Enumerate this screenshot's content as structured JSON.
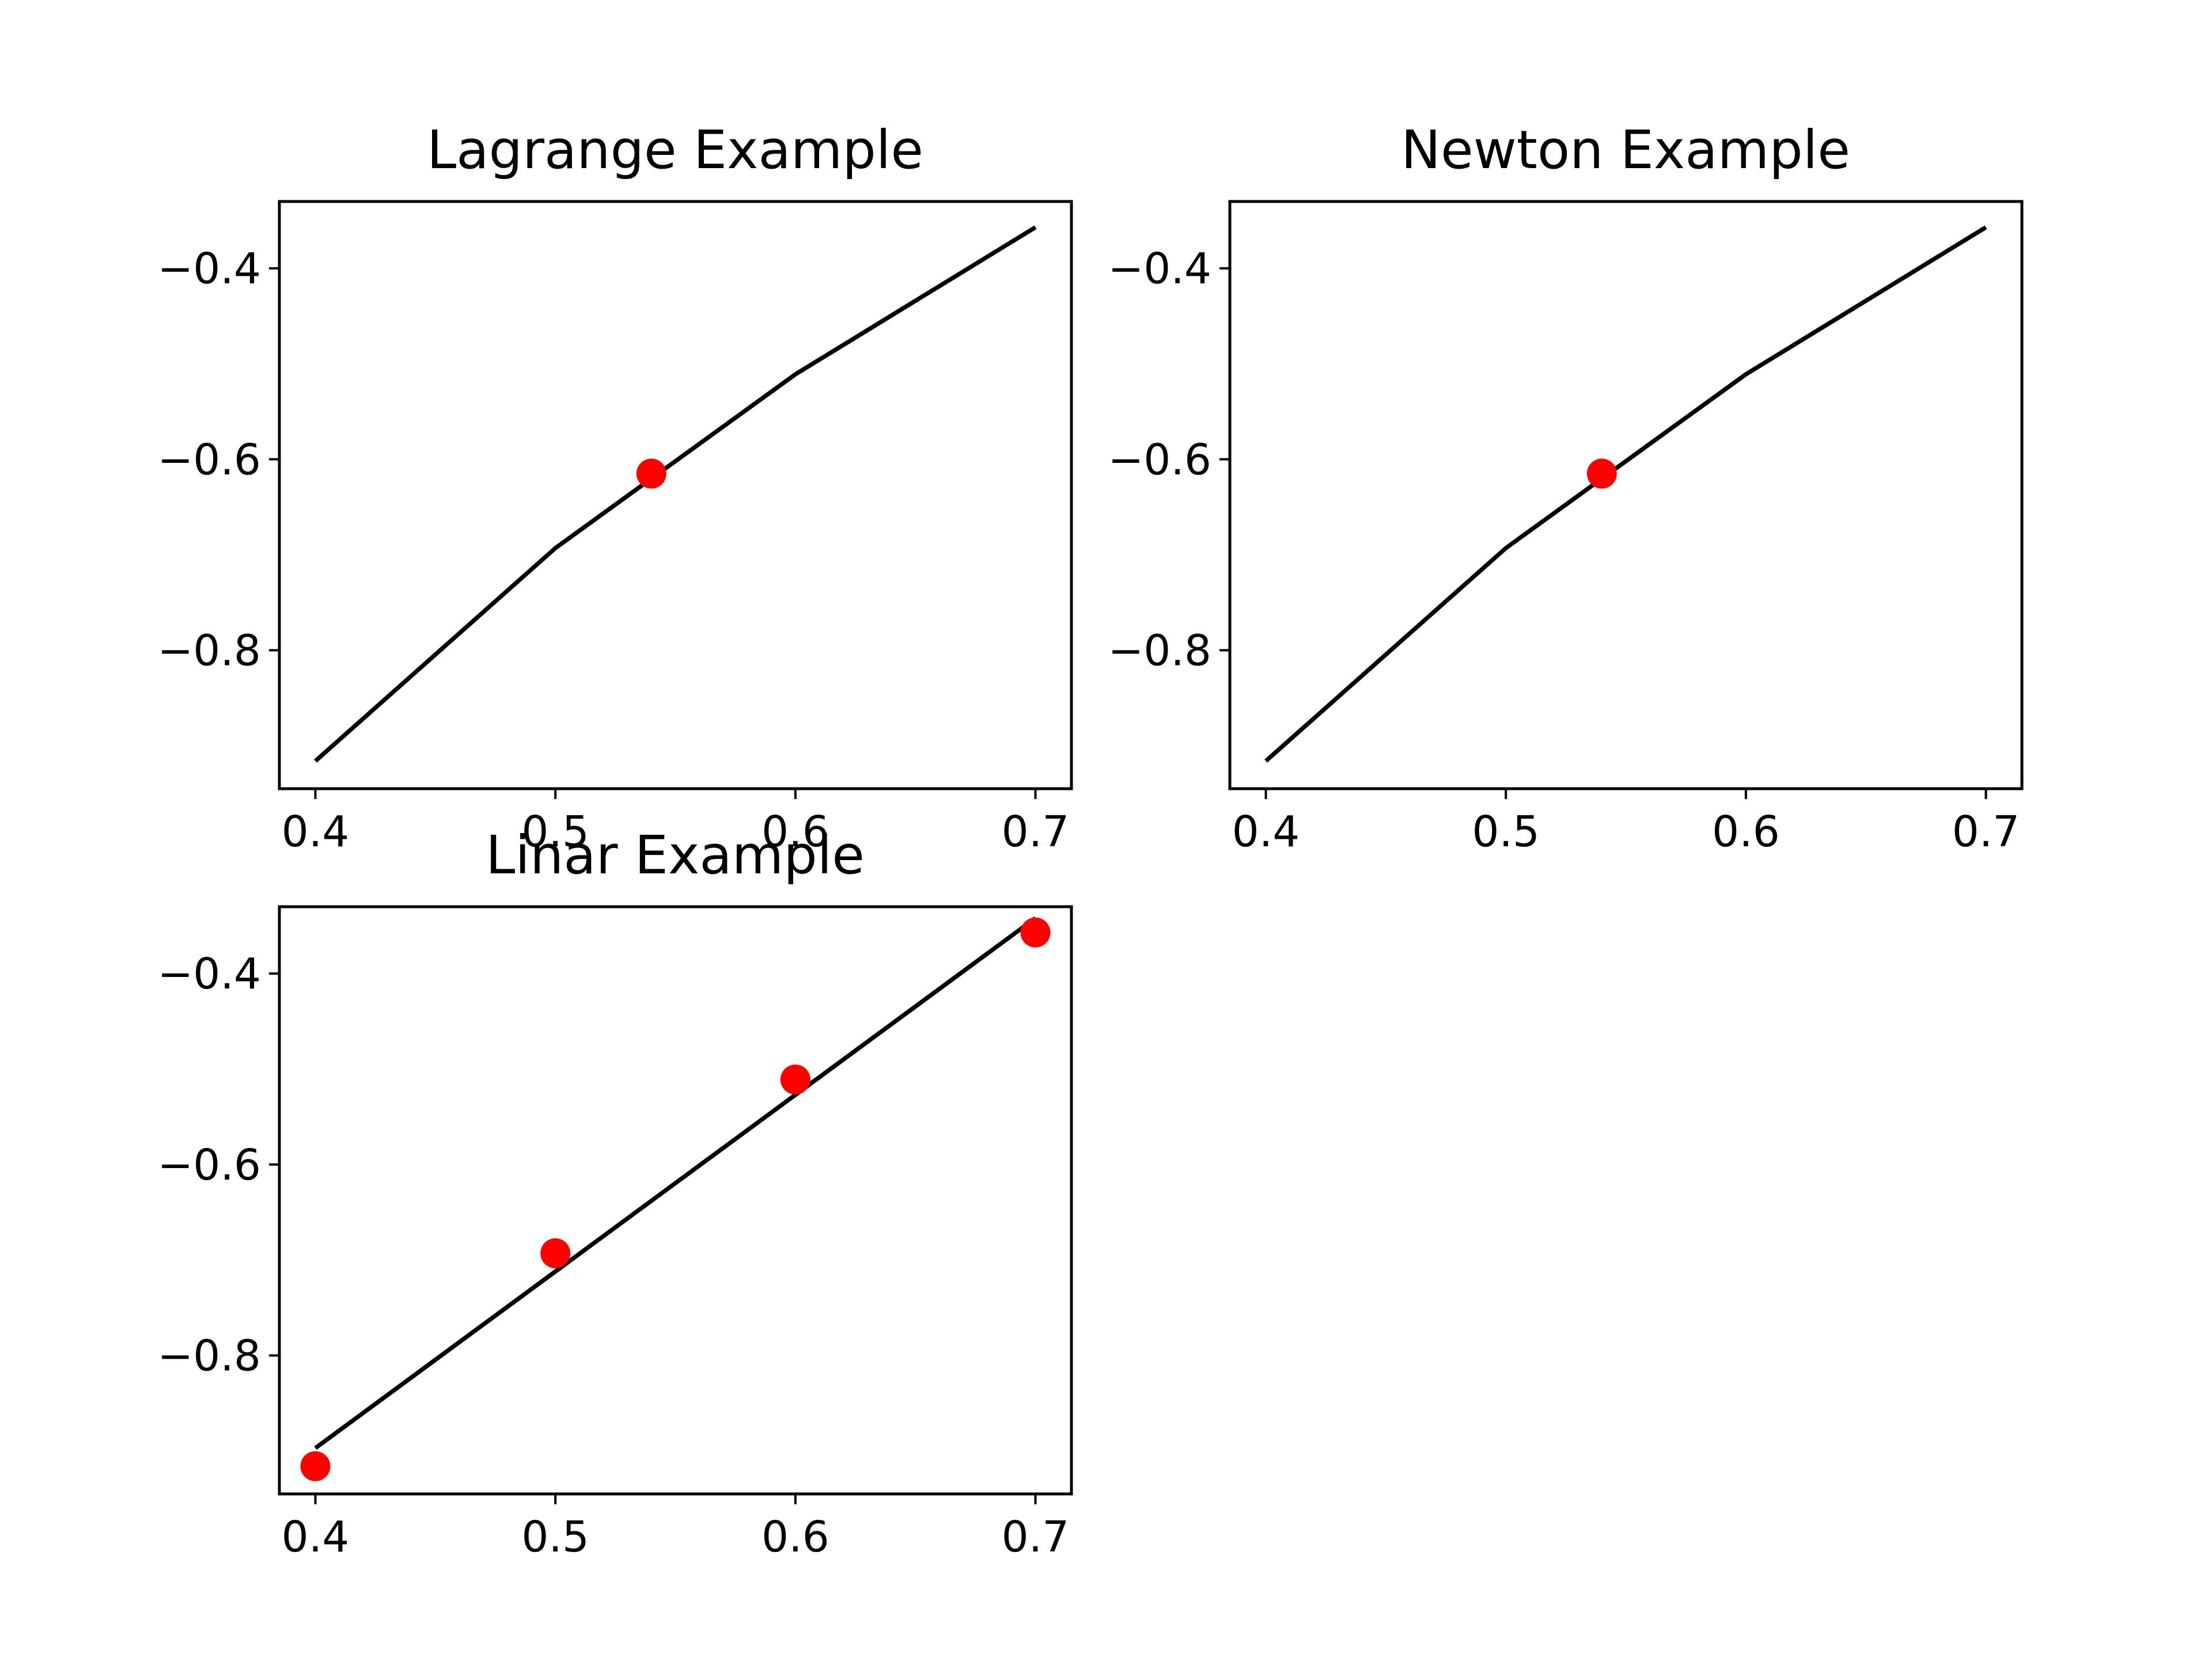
{
  "chart_data": [
    {
      "type": "line",
      "title": "Lagrange Example",
      "xlabel": "",
      "ylabel": "",
      "xlim": [
        0.385,
        0.715
      ],
      "ylim": [
        -0.945,
        -0.33
      ],
      "xticks": [
        0.4,
        0.5,
        0.6,
        0.7
      ],
      "xtick_labels": [
        "0.4",
        "0.5",
        "0.6",
        "0.7"
      ],
      "yticks": [
        -0.4,
        -0.6,
        -0.8
      ],
      "ytick_labels": [
        "−0.4",
        "−0.6",
        "−0.8"
      ],
      "grid": false,
      "line": {
        "color": "#000000",
        "x": [
          0.4,
          0.5,
          0.6,
          0.7
        ],
        "y": [
          -0.916,
          -0.693,
          -0.511,
          -0.357
        ]
      },
      "points": {
        "color": "#ff0000",
        "x": [
          0.54
        ],
        "y": [
          -0.615
        ]
      }
    },
    {
      "type": "line",
      "title": "Newton Example",
      "xlabel": "",
      "ylabel": "",
      "xlim": [
        0.385,
        0.715
      ],
      "ylim": [
        -0.945,
        -0.33
      ],
      "xticks": [
        0.4,
        0.5,
        0.6,
        0.7
      ],
      "xtick_labels": [
        "0.4",
        "0.5",
        "0.6",
        "0.7"
      ],
      "yticks": [
        -0.4,
        -0.6,
        -0.8
      ],
      "ytick_labels": [
        "−0.4",
        "−0.6",
        "−0.8"
      ],
      "grid": false,
      "line": {
        "color": "#000000",
        "x": [
          0.4,
          0.5,
          0.6,
          0.7
        ],
        "y": [
          -0.916,
          -0.693,
          -0.511,
          -0.357
        ]
      },
      "points": {
        "color": "#ff0000",
        "x": [
          0.54
        ],
        "y": [
          -0.615
        ]
      }
    },
    {
      "type": "scatter",
      "title": "Linar Example",
      "xlabel": "",
      "ylabel": "",
      "xlim": [
        0.385,
        0.715
      ],
      "ylim": [
        -0.945,
        -0.33
      ],
      "xticks": [
        0.4,
        0.5,
        0.6,
        0.7
      ],
      "xtick_labels": [
        "0.4",
        "0.5",
        "0.6",
        "0.7"
      ],
      "yticks": [
        -0.4,
        -0.6,
        -0.8
      ],
      "ytick_labels": [
        "−0.4",
        "−0.6",
        "−0.8"
      ],
      "grid": false,
      "line": {
        "color": "#000000",
        "x": [
          0.4,
          0.7
        ],
        "y": [
          -0.897,
          -0.342
        ]
      },
      "points": {
        "color": "#ff0000",
        "x": [
          0.4,
          0.5,
          0.6,
          0.7
        ],
        "y": [
          -0.916,
          -0.693,
          -0.511,
          -0.357
        ]
      }
    }
  ]
}
